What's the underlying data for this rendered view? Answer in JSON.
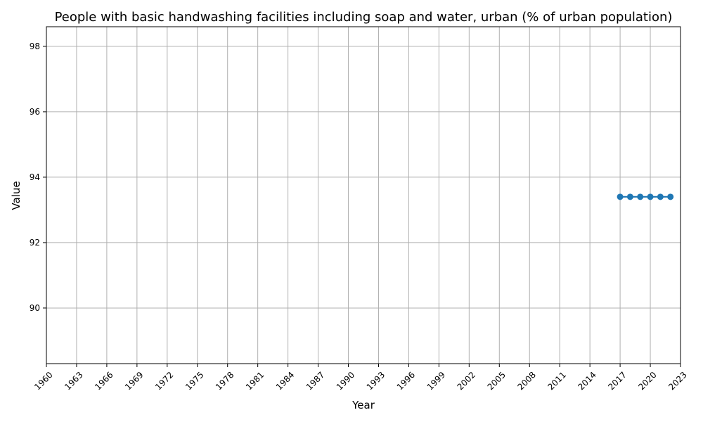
{
  "chart_data": {
    "type": "line",
    "title": "People with basic handwashing facilities including soap and water, urban (% of urban population)",
    "xlabel": "Year",
    "ylabel": "Value",
    "xlim": [
      1960,
      2023
    ],
    "ylim": [
      88.3,
      98.6
    ],
    "x_ticks": [
      1960,
      1963,
      1966,
      1969,
      1972,
      1975,
      1978,
      1981,
      1984,
      1987,
      1990,
      1993,
      1996,
      1999,
      2002,
      2005,
      2008,
      2011,
      2014,
      2017,
      2020,
      2023
    ],
    "y_ticks": [
      90,
      92,
      94,
      96,
      98
    ],
    "grid": true,
    "series": [
      {
        "color": "#1f77b4",
        "x": [
          2017,
          2018,
          2019,
          2020,
          2021,
          2022
        ],
        "y": [
          93.4,
          93.4,
          93.4,
          93.4,
          93.4,
          93.4
        ]
      }
    ]
  }
}
